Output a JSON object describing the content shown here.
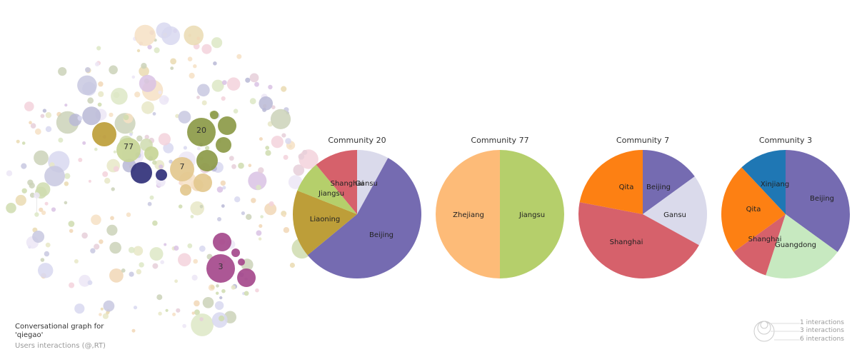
{
  "caption": {
    "title": "Conversational graph for 'qiegao'",
    "subtitle": "Users interactions (@,RT)"
  },
  "graph": {
    "labeled_nodes": [
      {
        "label": "77",
        "color": "#c7d596"
      },
      {
        "label": "20",
        "color": "#8c9a48"
      },
      {
        "label": "7",
        "color": "#e3c88e"
      },
      {
        "label": "3",
        "color": "#a5498c"
      }
    ]
  },
  "legend": {
    "items": [
      "1 interactions",
      "3 interactions",
      "6 interactions"
    ]
  },
  "colors": {
    "Beijing": "#756bb1",
    "Gansu": "#dadaeb",
    "Shanghai": "#d6616b",
    "Jiangsu": "#b5cf6b",
    "Liaoning": "#bd9e39",
    "Zhejiang": "#fdbb78",
    "Qita": "#fd8013",
    "Guangdong": "#c7e9c0",
    "Xinjiang": "#1f77b4"
  },
  "chart_data": [
    {
      "type": "pie",
      "title": "Community 20",
      "labels": [
        "Gansu",
        "Beijing",
        "Liaoning",
        "Jiangsu",
        "Shanghai"
      ],
      "values": [
        8,
        56,
        17,
        8,
        11
      ]
    },
    {
      "type": "pie",
      "title": "Community 77",
      "labels": [
        "Jiangsu",
        "Zhejiang"
      ],
      "values": [
        50,
        50
      ]
    },
    {
      "type": "pie",
      "title": "Community 7",
      "labels": [
        "Beijing",
        "Gansu",
        "Shanghai",
        "Qita"
      ],
      "values": [
        15,
        18,
        45,
        22
      ]
    },
    {
      "type": "pie",
      "title": "Community 3",
      "labels": [
        "Beijing",
        "Guangdong",
        "Shanghai",
        "Qita",
        "Xinjiang"
      ],
      "values": [
        35,
        20,
        10,
        23,
        12
      ]
    }
  ]
}
